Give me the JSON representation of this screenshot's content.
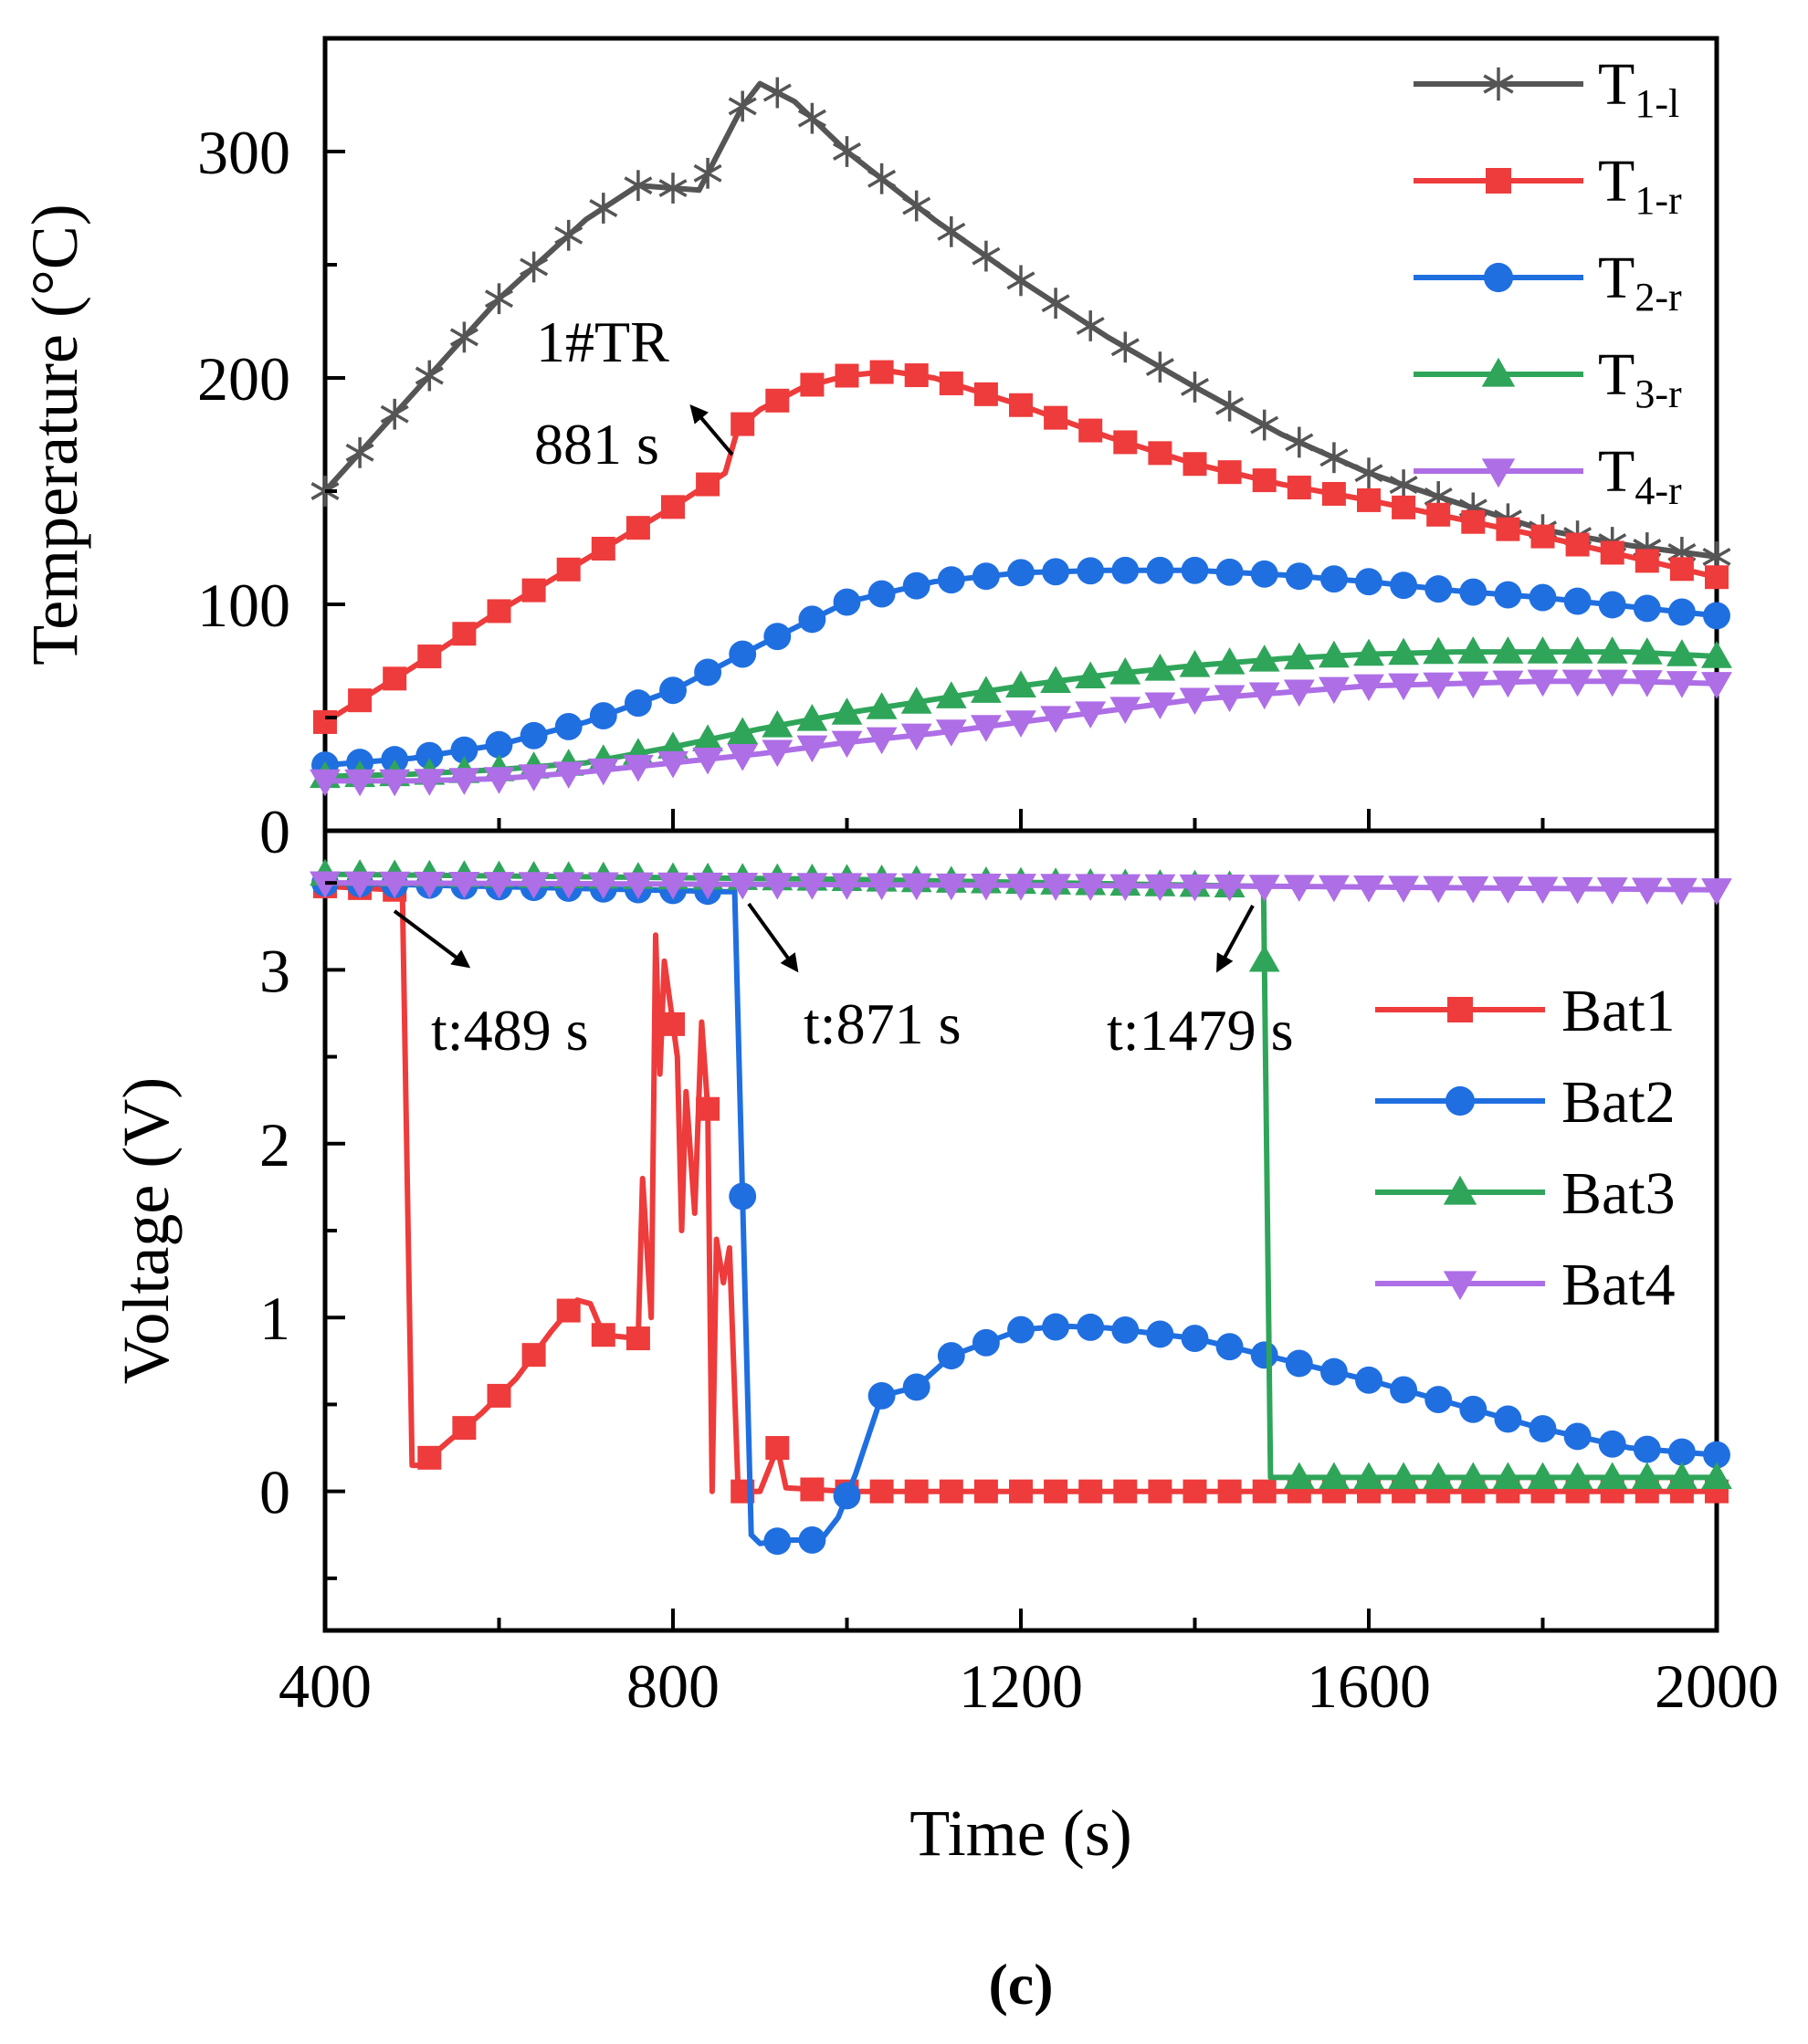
{
  "caption": "(c)",
  "colors": {
    "T_1_l": "#555555",
    "T_1_r": "#ee3b3b",
    "T_2_r": "#1f6fe0",
    "T_3_r": "#2fa55a",
    "T_4_r": "#ad6ee6",
    "Bat1": "#ee3b3b",
    "Bat2": "#1f6fe0",
    "Bat3": "#2fa55a",
    "Bat4": "#ad6ee6"
  },
  "chart_data": [
    {
      "type": "line",
      "panel": "top",
      "ylabel": "Temperature (°C)",
      "xlim": [
        400,
        2000
      ],
      "ylim": [
        0,
        350
      ],
      "yticks": [
        "0",
        "100",
        "200",
        "300"
      ],
      "xticks": [
        "400",
        "800",
        "1200",
        "1600",
        "2000"
      ],
      "legend_position": "top-right",
      "series": [
        {
          "key": "T_1_l",
          "label_main": "T",
          "label_sub": "1-l",
          "marker": "star",
          "points": [
            [
              400,
              150
            ],
            [
              600,
              235
            ],
            [
              700,
              270
            ],
            [
              760,
              285
            ],
            [
              830,
              283
            ],
            [
              880,
              320
            ],
            [
              900,
              330
            ],
            [
              940,
              322
            ],
            [
              1000,
              300
            ],
            [
              1100,
              270
            ],
            [
              1200,
              243
            ],
            [
              1300,
              218
            ],
            [
              1400,
              196
            ],
            [
              1500,
              175
            ],
            [
              1600,
              158
            ],
            [
              1700,
              145
            ],
            [
              1800,
              133
            ],
            [
              1900,
              126
            ],
            [
              2000,
              121
            ]
          ]
        },
        {
          "key": "T_1_r",
          "label_main": "T",
          "label_sub": "1-r",
          "marker": "square",
          "points": [
            [
              400,
              48
            ],
            [
              500,
              72
            ],
            [
              600,
              97
            ],
            [
              700,
              120
            ],
            [
              800,
              143
            ],
            [
              860,
              158
            ],
            [
              875,
              178
            ],
            [
              900,
              186
            ],
            [
              950,
              196
            ],
            [
              1000,
              201
            ],
            [
              1050,
              203
            ],
            [
              1100,
              200
            ],
            [
              1200,
              188
            ],
            [
              1300,
              174
            ],
            [
              1400,
              162
            ],
            [
              1500,
              153
            ],
            [
              1600,
              146
            ],
            [
              1700,
              138
            ],
            [
              1800,
              130
            ],
            [
              1900,
              121
            ],
            [
              2000,
              112
            ]
          ]
        },
        {
          "key": "T_2_r",
          "label_main": "T",
          "label_sub": "2-r",
          "marker": "circle",
          "points": [
            [
              400,
              29
            ],
            [
              500,
              32
            ],
            [
              600,
              38
            ],
            [
              700,
              48
            ],
            [
              800,
              62
            ],
            [
              900,
              82
            ],
            [
              1000,
              101
            ],
            [
              1100,
              110
            ],
            [
              1200,
              114
            ],
            [
              1300,
              115
            ],
            [
              1400,
              115
            ],
            [
              1500,
              113
            ],
            [
              1600,
              110
            ],
            [
              1700,
              106
            ],
            [
              1800,
              103
            ],
            [
              1900,
              99
            ],
            [
              2000,
              95
            ]
          ]
        },
        {
          "key": "T_3_r",
          "label_main": "T",
          "label_sub": "3-r",
          "marker": "triangle-up",
          "points": [
            [
              400,
              24
            ],
            [
              500,
              25
            ],
            [
              600,
              27
            ],
            [
              700,
              30
            ],
            [
              800,
              37
            ],
            [
              900,
              45
            ],
            [
              1000,
              52
            ],
            [
              1100,
              58
            ],
            [
              1200,
              64
            ],
            [
              1300,
              69
            ],
            [
              1400,
              73
            ],
            [
              1500,
              76
            ],
            [
              1600,
              78
            ],
            [
              1700,
              79
            ],
            [
              1800,
              79
            ],
            [
              1900,
              79
            ],
            [
              2000,
              77
            ]
          ]
        },
        {
          "key": "T_4_r",
          "label_main": "T",
          "label_sub": "4-r",
          "marker": "triangle-down",
          "points": [
            [
              400,
              22
            ],
            [
              500,
              22
            ],
            [
              600,
              23
            ],
            [
              700,
              26
            ],
            [
              800,
              30
            ],
            [
              900,
              34
            ],
            [
              1000,
              39
            ],
            [
              1100,
              43
            ],
            [
              1200,
              48
            ],
            [
              1300,
              53
            ],
            [
              1400,
              58
            ],
            [
              1500,
              61
            ],
            [
              1600,
              64
            ],
            [
              1700,
              65
            ],
            [
              1800,
              66
            ],
            [
              1900,
              66
            ],
            [
              2000,
              65
            ]
          ]
        }
      ],
      "annotations": [
        {
          "line1": "1#TR",
          "line2": "881 s",
          "x": 881,
          "y": 181
        }
      ]
    },
    {
      "type": "line",
      "panel": "bottom",
      "ylabel": "Voltage (V)",
      "xlabel": "Time (s)",
      "xlim": [
        400,
        2000
      ],
      "ylim": [
        -0.8,
        3.8
      ],
      "yticks": [
        "0",
        "1",
        "2",
        "3"
      ],
      "legend_position": "right",
      "series": [
        {
          "key": "Bat1",
          "label": "Bat1",
          "marker": "square",
          "points": [
            [
              400,
              3.48
            ],
            [
              480,
              3.46
            ],
            [
              489,
              3.4
            ],
            [
              500,
              0.15
            ],
            [
              510,
              0.15
            ],
            [
              540,
              0.28
            ],
            [
              580,
              0.45
            ],
            [
              620,
              0.65
            ],
            [
              660,
              0.92
            ],
            [
              690,
              1.1
            ],
            [
              705,
              1.08
            ],
            [
              720,
              0.9
            ],
            [
              760,
              0.88
            ],
            [
              765,
              1.8
            ],
            [
              775,
              1.0
            ],
            [
              780,
              3.2
            ],
            [
              785,
              2.4
            ],
            [
              790,
              3.05
            ],
            [
              797,
              2.8
            ],
            [
              805,
              2.5
            ],
            [
              810,
              1.5
            ],
            [
              815,
              2.3
            ],
            [
              825,
              1.6
            ],
            [
              833,
              2.7
            ],
            [
              840,
              2.2
            ],
            [
              845,
              0.0
            ],
            [
              850,
              1.45
            ],
            [
              858,
              1.2
            ],
            [
              865,
              1.4
            ],
            [
              875,
              0.0
            ],
            [
              900,
              0.0
            ],
            [
              920,
              0.25
            ],
            [
              930,
              0.02
            ],
            [
              1000,
              0.0
            ],
            [
              2000,
              0.0
            ]
          ]
        },
        {
          "key": "Bat2",
          "label": "Bat2",
          "marker": "circle",
          "points": [
            [
              400,
              3.5
            ],
            [
              860,
              3.45
            ],
            [
              871,
              3.45
            ],
            [
              890,
              -0.25
            ],
            [
              900,
              -0.3
            ],
            [
              930,
              -0.28
            ],
            [
              970,
              -0.28
            ],
            [
              990,
              -0.15
            ],
            [
              1010,
              0.1
            ],
            [
              1040,
              0.55
            ],
            [
              1080,
              0.6
            ],
            [
              1120,
              0.78
            ],
            [
              1200,
              0.93
            ],
            [
              1250,
              0.95
            ],
            [
              1300,
              0.94
            ],
            [
              1400,
              0.88
            ],
            [
              1500,
              0.76
            ],
            [
              1600,
              0.64
            ],
            [
              1700,
              0.5
            ],
            [
              1800,
              0.36
            ],
            [
              1900,
              0.25
            ],
            [
              2000,
              0.21
            ]
          ]
        },
        {
          "key": "Bat3",
          "label": "Bat3",
          "marker": "triangle-up",
          "points": [
            [
              400,
              3.55
            ],
            [
              1000,
              3.52
            ],
            [
              1479,
              3.48
            ],
            [
              1487,
              0.08
            ],
            [
              1500,
              0.08
            ],
            [
              2000,
              0.08
            ]
          ]
        },
        {
          "key": "Bat4",
          "label": "Bat4",
          "marker": "triangle-down",
          "points": [
            [
              400,
              3.5
            ],
            [
              1000,
              3.49
            ],
            [
              1500,
              3.48
            ],
            [
              2000,
              3.46
            ]
          ]
        }
      ],
      "annotations": [
        {
          "text": "t:489 s",
          "x": 489
        },
        {
          "text": "t:871 s",
          "x": 871
        },
        {
          "text": "t:1479 s",
          "x": 1479
        }
      ]
    }
  ]
}
